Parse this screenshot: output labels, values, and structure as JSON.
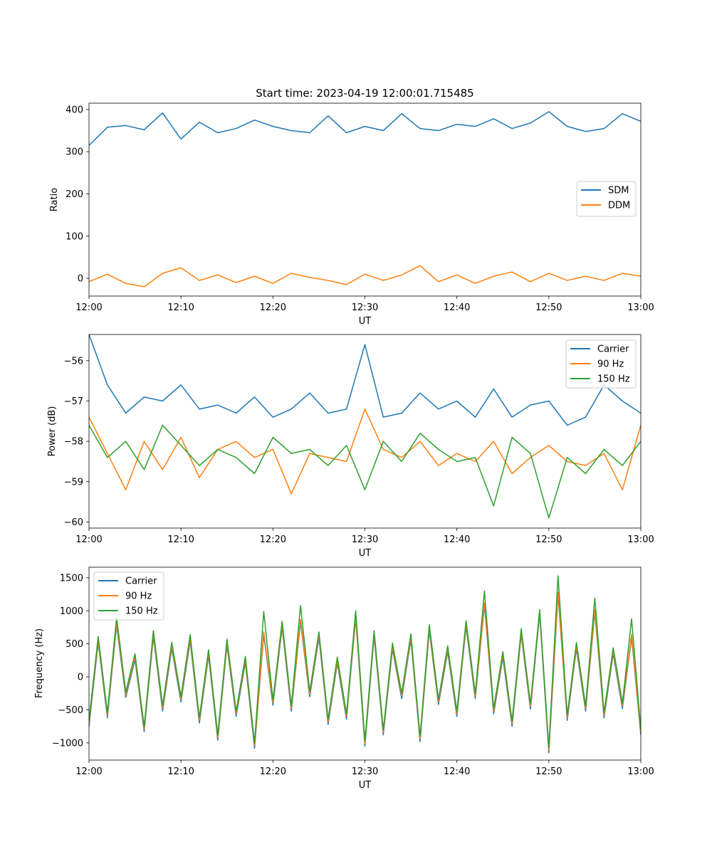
{
  "figure": {
    "title": "Start time: 2023-04-19 12:00:01.715485"
  },
  "chart_data": [
    {
      "type": "line",
      "xlabel": "UT",
      "ylabel": "Ratio",
      "xlim": [
        "12:00",
        "13:00"
      ],
      "xticks": [
        "12:00",
        "12:10",
        "12:20",
        "12:30",
        "12:40",
        "12:50",
        "13:00"
      ],
      "ylim": [
        -42,
        415
      ],
      "yticks": [
        0,
        100,
        200,
        300,
        400
      ],
      "grid": false,
      "legend": "center-right",
      "series": [
        {
          "name": "SDM",
          "color": "#1f77b4",
          "x": [
            "12:00",
            "12:02",
            "12:04",
            "12:06",
            "12:08",
            "12:10",
            "12:12",
            "12:14",
            "12:16",
            "12:18",
            "12:20",
            "12:22",
            "12:24",
            "12:26",
            "12:28",
            "12:30",
            "12:32",
            "12:34",
            "12:36",
            "12:38",
            "12:40",
            "12:42",
            "12:44",
            "12:46",
            "12:48",
            "12:50",
            "12:52",
            "12:54",
            "12:56",
            "12:58",
            "13:00"
          ],
          "values": [
            315,
            358,
            362,
            352,
            392,
            330,
            370,
            345,
            355,
            375,
            360,
            350,
            345,
            385,
            345,
            360,
            350,
            390,
            355,
            350,
            365,
            360,
            378,
            355,
            368,
            395,
            360,
            348,
            355,
            390,
            372
          ]
        },
        {
          "name": "DDM",
          "color": "#ff7f0e",
          "x": [
            "12:00",
            "12:02",
            "12:04",
            "12:06",
            "12:08",
            "12:10",
            "12:12",
            "12:14",
            "12:16",
            "12:18",
            "12:20",
            "12:22",
            "12:24",
            "12:26",
            "12:28",
            "12:30",
            "12:32",
            "12:34",
            "12:36",
            "12:38",
            "12:40",
            "12:42",
            "12:44",
            "12:46",
            "12:48",
            "12:50",
            "12:52",
            "12:54",
            "12:56",
            "12:58",
            "13:00"
          ],
          "values": [
            -8,
            10,
            -12,
            -20,
            12,
            25,
            -5,
            8,
            -10,
            5,
            -12,
            12,
            2,
            -5,
            -15,
            10,
            -5,
            8,
            30,
            -8,
            8,
            -12,
            5,
            15,
            -8,
            12,
            -5,
            5,
            -5,
            12,
            5
          ]
        }
      ]
    },
    {
      "type": "line",
      "xlabel": "UT",
      "ylabel": "Power (dB)",
      "xlim": [
        "12:00",
        "13:00"
      ],
      "xticks": [
        "12:00",
        "12:10",
        "12:20",
        "12:30",
        "12:40",
        "12:50",
        "13:00"
      ],
      "ylim": [
        -60.15,
        -55.35
      ],
      "yticks": [
        -60,
        -59,
        -58,
        -57,
        -56
      ],
      "grid": false,
      "legend": "top-right",
      "series": [
        {
          "name": "Carrier",
          "color": "#1f77b4",
          "x": [
            "12:00",
            "12:02",
            "12:04",
            "12:06",
            "12:08",
            "12:10",
            "12:12",
            "12:14",
            "12:16",
            "12:18",
            "12:20",
            "12:22",
            "12:24",
            "12:26",
            "12:28",
            "12:30",
            "12:32",
            "12:34",
            "12:36",
            "12:38",
            "12:40",
            "12:42",
            "12:44",
            "12:46",
            "12:48",
            "12:50",
            "12:52",
            "12:54",
            "12:56",
            "12:58",
            "13:00"
          ],
          "values": [
            -55.35,
            -56.6,
            -57.3,
            -56.9,
            -57.0,
            -56.6,
            -57.2,
            -57.1,
            -57.3,
            -56.9,
            -57.4,
            -57.2,
            -56.8,
            -57.3,
            -57.2,
            -55.6,
            -57.4,
            -57.3,
            -56.8,
            -57.2,
            -57.0,
            -57.4,
            -56.7,
            -57.4,
            -57.1,
            -57.0,
            -57.6,
            -57.4,
            -56.6,
            -57.0,
            -57.3
          ]
        },
        {
          "name": "90 Hz",
          "color": "#ff7f0e",
          "x": [
            "12:00",
            "12:02",
            "12:04",
            "12:06",
            "12:08",
            "12:10",
            "12:12",
            "12:14",
            "12:16",
            "12:18",
            "12:20",
            "12:22",
            "12:24",
            "12:26",
            "12:28",
            "12:30",
            "12:32",
            "12:34",
            "12:36",
            "12:38",
            "12:40",
            "12:42",
            "12:44",
            "12:46",
            "12:48",
            "12:50",
            "12:52",
            "12:54",
            "12:56",
            "12:58",
            "13:00"
          ],
          "values": [
            -57.4,
            -58.3,
            -59.2,
            -58.0,
            -58.7,
            -57.9,
            -58.9,
            -58.2,
            -58.0,
            -58.4,
            -58.2,
            -59.3,
            -58.3,
            -58.4,
            -58.5,
            -57.2,
            -58.2,
            -58.4,
            -58.0,
            -58.6,
            -58.3,
            -58.5,
            -58.0,
            -58.8,
            -58.4,
            -58.1,
            -58.5,
            -58.6,
            -58.3,
            -59.2,
            -57.6
          ]
        },
        {
          "name": "150 Hz",
          "color": "#2ca02c",
          "x": [
            "12:00",
            "12:02",
            "12:04",
            "12:06",
            "12:08",
            "12:10",
            "12:12",
            "12:14",
            "12:16",
            "12:18",
            "12:20",
            "12:22",
            "12:24",
            "12:26",
            "12:28",
            "12:30",
            "12:32",
            "12:34",
            "12:36",
            "12:38",
            "12:40",
            "12:42",
            "12:44",
            "12:46",
            "12:48",
            "12:50",
            "12:52",
            "12:54",
            "12:56",
            "12:58",
            "13:00"
          ],
          "values": [
            -57.6,
            -58.4,
            -58.0,
            -58.7,
            -57.6,
            -58.1,
            -58.6,
            -58.2,
            -58.4,
            -58.8,
            -57.9,
            -58.3,
            -58.2,
            -58.6,
            -58.1,
            -59.2,
            -58.0,
            -58.5,
            -57.8,
            -58.2,
            -58.5,
            -58.4,
            -59.6,
            -57.9,
            -58.3,
            -59.9,
            -58.4,
            -58.8,
            -58.2,
            -58.6,
            -58.0
          ]
        }
      ]
    },
    {
      "type": "line",
      "xlabel": "UT",
      "ylabel": "Frequency (Hz)",
      "xlim": [
        "12:00",
        "13:00"
      ],
      "xticks": [
        "12:00",
        "12:10",
        "12:20",
        "12:30",
        "12:40",
        "12:50",
        "13:00"
      ],
      "ylim": [
        -1260,
        1660
      ],
      "yticks": [
        -1000,
        -500,
        0,
        500,
        1000,
        1500
      ],
      "grid": false,
      "legend": "top-left",
      "series": [
        {
          "name": "Carrier",
          "color": "#1f77b4",
          "x": [
            "12:00",
            "12:01",
            "12:02",
            "12:03",
            "12:04",
            "12:05",
            "12:06",
            "12:07",
            "12:08",
            "12:09",
            "12:10",
            "12:11",
            "12:12",
            "12:13",
            "12:14",
            "12:15",
            "12:16",
            "12:17",
            "12:18",
            "12:19",
            "12:20",
            "12:21",
            "12:22",
            "12:23",
            "12:24",
            "12:25",
            "12:26",
            "12:27",
            "12:28",
            "12:29",
            "12:30",
            "12:31",
            "12:32",
            "12:33",
            "12:34",
            "12:35",
            "12:36",
            "12:37",
            "12:38",
            "12:39",
            "12:40",
            "12:41",
            "12:42",
            "12:43",
            "12:44",
            "12:45",
            "12:46",
            "12:47",
            "12:48",
            "12:49",
            "12:50",
            "12:51",
            "12:52",
            "12:53",
            "12:54",
            "12:55",
            "12:56",
            "12:57",
            "12:58",
            "12:59",
            "13:00"
          ],
          "values": [
            -750,
            520,
            -620,
            780,
            -310,
            260,
            -830,
            610,
            -520,
            430,
            -380,
            540,
            -700,
            320,
            -960,
            480,
            -600,
            220,
            -1080,
            640,
            -430,
            750,
            -520,
            830,
            -300,
            590,
            -720,
            210,
            -640,
            880,
            -1050,
            610,
            -880,
            420,
            -330,
            560,
            -980,
            700,
            -420,
            380,
            -600,
            760,
            -330,
            1080,
            -560,
            290,
            -750,
            640,
            -490,
            950,
            -1150,
            1240,
            -660,
            430,
            -520,
            980,
            -620,
            350,
            -480,
            600,
            -880
          ]
        },
        {
          "name": "90 Hz",
          "color": "#ff7f0e",
          "x": [
            "12:00",
            "12:01",
            "12:02",
            "12:03",
            "12:04",
            "12:05",
            "12:06",
            "12:07",
            "12:08",
            "12:09",
            "12:10",
            "12:11",
            "12:12",
            "12:13",
            "12:14",
            "12:15",
            "12:16",
            "12:17",
            "12:18",
            "12:19",
            "12:20",
            "12:21",
            "12:22",
            "12:23",
            "12:24",
            "12:25",
            "12:26",
            "12:27",
            "12:28",
            "12:29",
            "12:30",
            "12:31",
            "12:32",
            "12:33",
            "12:34",
            "12:35",
            "12:36",
            "12:37",
            "12:38",
            "12:39",
            "12:40",
            "12:41",
            "12:42",
            "12:43",
            "12:44",
            "12:45",
            "12:46",
            "12:47",
            "12:48",
            "12:49",
            "12:50",
            "12:51",
            "12:52",
            "12:53",
            "12:54",
            "12:55",
            "12:56",
            "12:57",
            "12:58",
            "12:59",
            "13:00"
          ],
          "values": [
            -700,
            560,
            -580,
            820,
            -270,
            300,
            -790,
            650,
            -480,
            470,
            -340,
            580,
            -660,
            360,
            -920,
            520,
            -560,
            260,
            -1040,
            680,
            -390,
            790,
            -480,
            870,
            -260,
            630,
            -680,
            250,
            -600,
            920,
            -1010,
            650,
            -840,
            460,
            -290,
            600,
            -940,
            740,
            -380,
            420,
            -560,
            800,
            -290,
            1120,
            -520,
            330,
            -710,
            680,
            -450,
            990,
            -1110,
            1280,
            -620,
            470,
            -480,
            1020,
            -580,
            390,
            -440,
            640,
            -840
          ]
        },
        {
          "name": "150 Hz",
          "color": "#2ca02c",
          "x": [
            "12:00",
            "12:01",
            "12:02",
            "12:03",
            "12:04",
            "12:05",
            "12:06",
            "12:07",
            "12:08",
            "12:09",
            "12:10",
            "12:11",
            "12:12",
            "12:13",
            "12:14",
            "12:15",
            "12:16",
            "12:17",
            "12:18",
            "12:19",
            "12:20",
            "12:21",
            "12:22",
            "12:23",
            "12:24",
            "12:25",
            "12:26",
            "12:27",
            "12:28",
            "12:29",
            "12:30",
            "12:31",
            "12:32",
            "12:33",
            "12:34",
            "12:35",
            "12:36",
            "12:37",
            "12:38",
            "12:39",
            "12:40",
            "12:41",
            "12:42",
            "12:43",
            "12:44",
            "12:45",
            "12:46",
            "12:47",
            "12:48",
            "12:49",
            "12:50",
            "12:51",
            "12:52",
            "12:53",
            "12:54",
            "12:55",
            "12:56",
            "12:57",
            "12:58",
            "12:59",
            "13:00"
          ],
          "values": [
            -660,
            610,
            -540,
            900,
            -230,
            350,
            -750,
            700,
            -440,
            520,
            -300,
            640,
            -620,
            410,
            -880,
            570,
            -520,
            310,
            -1000,
            990,
            -350,
            840,
            -440,
            1080,
            -220,
            680,
            -640,
            300,
            -560,
            1000,
            -970,
            700,
            -800,
            510,
            -250,
            650,
            -900,
            790,
            -340,
            470,
            -520,
            850,
            -250,
            1300,
            -480,
            380,
            -670,
            730,
            -410,
            1020,
            -1070,
            1530,
            -580,
            520,
            -440,
            1190,
            -540,
            440,
            -400,
            880,
            -800
          ]
        }
      ]
    }
  ]
}
